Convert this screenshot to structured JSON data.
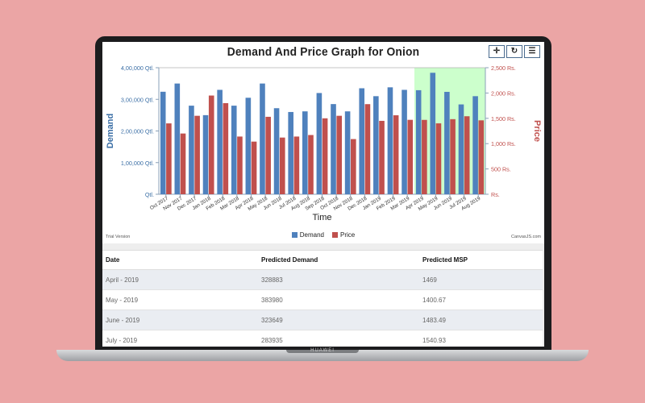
{
  "toolbar": {
    "icons": [
      "move-icon",
      "reset-icon",
      "menu-icon"
    ],
    "glyphs": [
      "✛",
      "↻",
      "☰"
    ]
  },
  "chart_data": {
    "type": "bar",
    "title": "Demand And Price Graph for Onion",
    "xlabel": "Time",
    "ylabel_left": "Demand",
    "ylabel_right": "Price",
    "categories": [
      "Oct 2017",
      "Nov 2017",
      "Dec 2017",
      "Jan 2018",
      "Feb 2018",
      "Mar 2018",
      "Apr 2018",
      "May 2018",
      "Jun 2018",
      "Jul 2018",
      "Aug 2018",
      "Sep 2018",
      "Oct 2018",
      "Nov 2018",
      "Dec 2018",
      "Jan 2019",
      "Feb 2019",
      "Mar 2019",
      "Apr 2019",
      "May 2019",
      "Jun 2019",
      "Jul 2019",
      "Aug 2019"
    ],
    "tick_labels": [
      "Oct 2017",
      "Nov 2017",
      "Dec 2017",
      "Jan 2018",
      "Feb 2018",
      "Mar 2018",
      "Apr 2018",
      "May 2018",
      "Jun 2018",
      "Jul 2018",
      "Aug 2018",
      "Sep 2018",
      "Oct 2018",
      "Nov 2018",
      "Dec 2018",
      "Jan 2019",
      "Feb 2019",
      "Mar 2019",
      "Apr 2019",
      "May 2019",
      "Jun 2019",
      "Jul 2019",
      "Aug 2019"
    ],
    "series": [
      {
        "name": "Demand",
        "axis": "left",
        "color": "#4f81bd",
        "values": [
          324000,
          350000,
          280000,
          250000,
          330000,
          280000,
          305000,
          350000,
          272000,
          260000,
          262000,
          320000,
          285000,
          262000,
          335000,
          310000,
          338000,
          330000,
          328883,
          383980,
          323649,
          283935,
          310000
        ]
      },
      {
        "name": "Price",
        "axis": "right",
        "color": "#c0504d",
        "values": [
          1400,
          1200,
          1550,
          1950,
          1800,
          1140,
          1040,
          1530,
          1120,
          1140,
          1170,
          1500,
          1550,
          1090,
          1780,
          1450,
          1560,
          1470,
          1469,
          1400.67,
          1483.49,
          1540.93,
          1460
        ]
      }
    ],
    "left_axis": {
      "ylim": [
        0,
        400000
      ],
      "ticks": [
        "Qtl.",
        "1,00,000 Qtl.",
        "2,00,000 Qtl.",
        "3,00,000 Qtl.",
        "4,00,000 Qtl."
      ]
    },
    "right_axis": {
      "ylim": [
        0,
        2500
      ],
      "ticks": [
        "Rs.",
        "500 Rs.",
        "1,000 Rs.",
        "1,500 Rs.",
        "2,000 Rs.",
        "2,500 Rs."
      ]
    },
    "highlight_range": {
      "from": "Apr 2019",
      "to": "Aug 2019",
      "color": "#ccffcc"
    },
    "grid": false,
    "legend": "bottom"
  },
  "footer": {
    "trial": "Trial Version",
    "credit": "CanvasJS.com"
  },
  "legend": [
    {
      "label": "Demand",
      "color": "#4f81bd"
    },
    {
      "label": "Price",
      "color": "#c0504d"
    }
  ],
  "table": {
    "headers": [
      "Date",
      "Predicted Demand",
      "Predicted MSP"
    ],
    "rows": [
      [
        "April - 2019",
        "328883",
        "1469"
      ],
      [
        "May - 2019",
        "383980",
        "1400.67"
      ],
      [
        "June - 2019",
        "323649",
        "1483.49"
      ],
      [
        "July - 2019",
        "283935",
        "1540.93"
      ]
    ]
  },
  "brand": "HUAWEI",
  "colors": {
    "background": "#eba5a5",
    "demand": "#4f81bd",
    "price": "#c0504d",
    "highlight": "#ccffcc"
  }
}
